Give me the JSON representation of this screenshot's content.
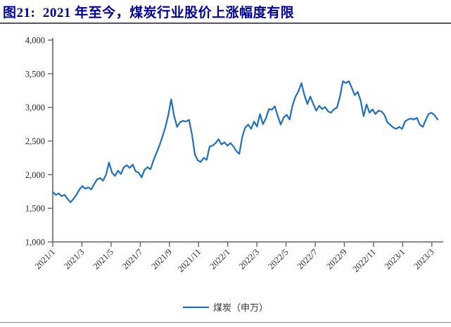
{
  "header": {
    "title": "图21:  2021 年至今，煤炭行业股价上涨幅度有限"
  },
  "chart_data": {
    "type": "line",
    "title": "图21: 2021 年至今，煤炭行业股价上涨幅度有限",
    "xlabel": "",
    "ylabel": "",
    "ylim": [
      1000,
      4000
    ],
    "y_ticks": [
      1000,
      1500,
      2000,
      2500,
      3000,
      3500,
      4000
    ],
    "x_tick_labels": [
      "2021/1",
      "2021/3",
      "2021/5",
      "2021/7",
      "2021/9",
      "2021/11",
      "2022/1",
      "2022/3",
      "2022/5",
      "2022/7",
      "2022/9",
      "2022/11",
      "2023/1",
      "2023/3"
    ],
    "x_range": [
      "2021/1",
      "2023/3"
    ],
    "grid": false,
    "legend_label": "煤炭（申万）",
    "legend_position": "bottom-center",
    "axis_color": "#666666",
    "tick_text_color": "#262626",
    "title_color": "#00009B",
    "series": [
      {
        "name": "煤炭（申万）",
        "color": "#1F6FBF",
        "frequency": "weekly",
        "values": [
          1740,
          1700,
          1720,
          1680,
          1700,
          1640,
          1590,
          1640,
          1700,
          1780,
          1830,
          1790,
          1810,
          1780,
          1860,
          1930,
          1950,
          1910,
          2000,
          2180,
          2030,
          1980,
          2060,
          2010,
          2110,
          2140,
          2100,
          2150,
          2050,
          2030,
          1960,
          2070,
          2110,
          2080,
          2210,
          2320,
          2430,
          2560,
          2700,
          2880,
          3120,
          2870,
          2710,
          2780,
          2800,
          2790,
          2815,
          2600,
          2300,
          2210,
          2190,
          2250,
          2220,
          2420,
          2430,
          2470,
          2525,
          2450,
          2480,
          2430,
          2470,
          2420,
          2350,
          2310,
          2560,
          2700,
          2745,
          2680,
          2790,
          2715,
          2900,
          2750,
          2840,
          2975,
          2965,
          3015,
          2870,
          2745,
          2850,
          2890,
          2820,
          3030,
          3160,
          3240,
          3360,
          3180,
          3050,
          3160,
          3050,
          2950,
          3025,
          2975,
          3005,
          2940,
          2920,
          2975,
          2995,
          3155,
          3390,
          3360,
          3390,
          3290,
          3180,
          3230,
          3100,
          2870,
          3045,
          2920,
          2970,
          2900,
          2950,
          2940,
          2890,
          2780,
          2740,
          2700,
          2680,
          2710,
          2680,
          2790,
          2820,
          2835,
          2820,
          2845,
          2740,
          2710,
          2815,
          2905,
          2920,
          2880,
          2820
        ]
      }
    ]
  }
}
